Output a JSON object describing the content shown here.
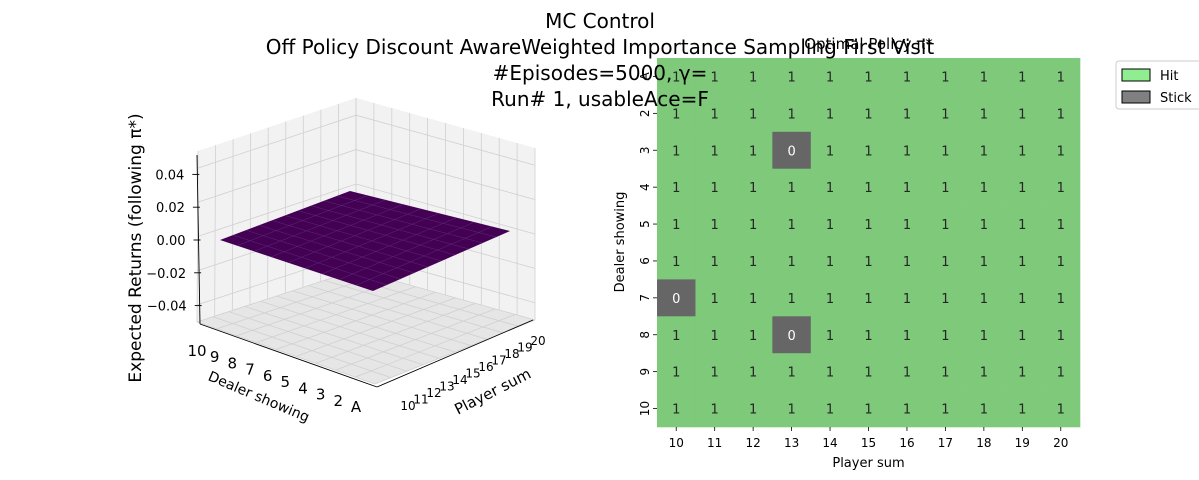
{
  "suptitle": [
    "MC Control",
    "Off Policy Discount AwareWeighted Importance Sampling First Visit",
    "#Episodes=5000, γ=",
    "Run# 1, usableAce=F"
  ],
  "chart_data": [
    {
      "type": "surface3d",
      "zlabel": "Expected Returns (following π*)",
      "xlabel": "Player sum",
      "ylabel": "Dealer showing",
      "x_ticks": [
        "10",
        "11",
        "12",
        "13",
        "14",
        "15",
        "16",
        "17",
        "18",
        "19",
        "20"
      ],
      "y_ticks": [
        "10",
        "9",
        "8",
        "7",
        "6",
        "5",
        "4",
        "3",
        "2",
        "A"
      ],
      "z_ticks": [
        "0.04",
        "0.02",
        "0.00",
        "−0.02",
        "−0.04"
      ],
      "zlim": [
        -0.05,
        0.05
      ],
      "z_value": 0.0,
      "surface_color": "#440154"
    },
    {
      "type": "heatmap",
      "title": "Optimal Policy π*",
      "xlabel": "Player sum",
      "ylabel": "Dealer showing",
      "x": [
        "10",
        "11",
        "12",
        "13",
        "14",
        "15",
        "16",
        "17",
        "18",
        "19",
        "20"
      ],
      "y": [
        "A",
        "2",
        "3",
        "4",
        "5",
        "6",
        "7",
        "8",
        "9",
        "10"
      ],
      "values": [
        [
          1,
          1,
          1,
          1,
          1,
          1,
          1,
          1,
          1,
          1,
          1
        ],
        [
          1,
          1,
          1,
          1,
          1,
          1,
          1,
          1,
          1,
          1,
          1
        ],
        [
          1,
          1,
          1,
          0,
          1,
          1,
          1,
          1,
          1,
          1,
          1
        ],
        [
          1,
          1,
          1,
          1,
          1,
          1,
          1,
          1,
          1,
          1,
          1
        ],
        [
          1,
          1,
          1,
          1,
          1,
          1,
          1,
          1,
          1,
          1,
          1
        ],
        [
          1,
          1,
          1,
          1,
          1,
          1,
          1,
          1,
          1,
          1,
          1
        ],
        [
          0,
          1,
          1,
          1,
          1,
          1,
          1,
          1,
          1,
          1,
          1
        ],
        [
          1,
          1,
          1,
          0,
          1,
          1,
          1,
          1,
          1,
          1,
          1
        ],
        [
          1,
          1,
          1,
          1,
          1,
          1,
          1,
          1,
          1,
          1,
          1
        ],
        [
          1,
          1,
          1,
          1,
          1,
          1,
          1,
          1,
          1,
          1,
          1
        ]
      ],
      "colors": {
        "1": "#7ec97a",
        "0": "#666666"
      },
      "legend": [
        {
          "label": "Hit",
          "color": "#90ee90"
        },
        {
          "label": "Stick",
          "color": "#808080"
        }
      ],
      "legend_position": "upper-right-outside"
    }
  ]
}
